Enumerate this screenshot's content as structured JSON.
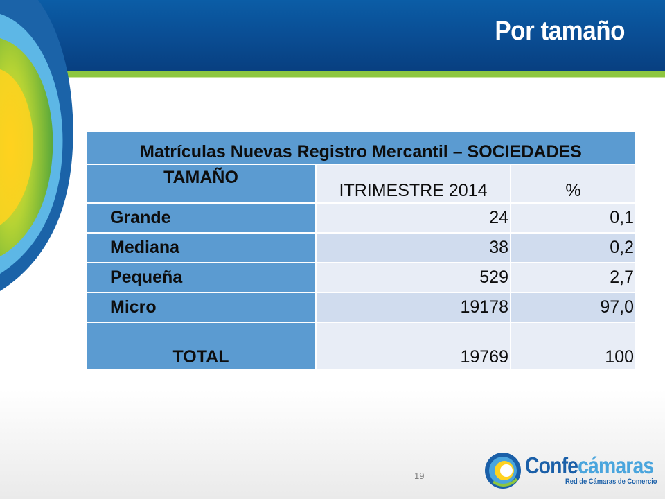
{
  "slide": {
    "title": "Por tamaño",
    "page_number": "19"
  },
  "table": {
    "caption": "Matrículas Nuevas Registro Mercantil – SOCIEDADES",
    "headers": [
      "TAMAÑO",
      "ITRIMESTRE 2014",
      "%"
    ],
    "rows": [
      {
        "size": "Grande",
        "count": "24",
        "pct": "0,1"
      },
      {
        "size": "Mediana",
        "count": "38",
        "pct": "0,2"
      },
      {
        "size": "Pequeña",
        "count": "529",
        "pct": "2,7"
      },
      {
        "size": "Micro",
        "count": "19178",
        "pct": "97,0"
      }
    ],
    "total": {
      "size": "TOTAL",
      "count": "19769",
      "pct": "100"
    }
  },
  "logo": {
    "name_part1": "Confe",
    "name_part2": "cámaras",
    "subtitle": "Red de Cámaras de Comercio"
  },
  "colors": {
    "header_blue": "#0a4f96",
    "accent_green": "#8dc63f",
    "table_blue": "#5b9bd1",
    "row_light": "#e8edf6",
    "row_dark": "#d0dcee"
  }
}
